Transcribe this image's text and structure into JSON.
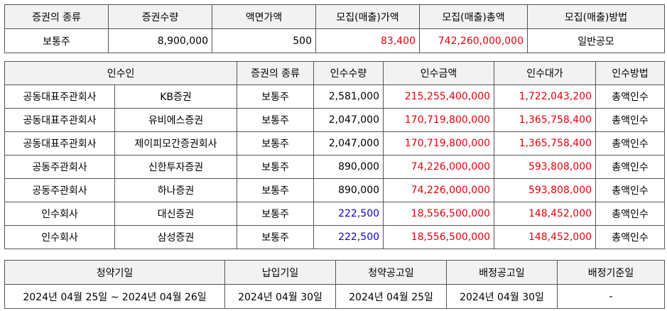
{
  "issue": {
    "headers": [
      "증권의 종류",
      "증권수량",
      "액면가액",
      "모집(매출)가액",
      "모집(매출)총액",
      "모집(매출)방법"
    ],
    "row": {
      "kind": "보통주",
      "quantity": "8,900,000",
      "face_value": "500",
      "offer_price": "83,400",
      "offer_total": "742,260,000,000",
      "method": "일반공모"
    }
  },
  "underwriters": {
    "headers": {
      "underwriter": "인수인",
      "kind": "증권의 종류",
      "quantity": "인수수량",
      "amount": "인수금액",
      "fee": "인수대가",
      "method": "인수방법"
    },
    "rows": [
      {
        "role": "공동대표주관회사",
        "name": "KB증권",
        "kind": "보통주",
        "quantity": "2,581,000",
        "amount": "215,255,400,000",
        "fee": "1,722,043,200",
        "method": "총액인수"
      },
      {
        "role": "공동대표주관회사",
        "name": "유비에스증권",
        "kind": "보통주",
        "quantity": "2,047,000",
        "amount": "170,719,800,000",
        "fee": "1,365,758,400",
        "method": "총액인수"
      },
      {
        "role": "공동대표주관회사",
        "name": "제이피모간증권회사",
        "kind": "보통주",
        "quantity": "2,047,000",
        "amount": "170,719,800,000",
        "fee": "1,365,758,400",
        "method": "총액인수"
      },
      {
        "role": "공동주관회사",
        "name": "신한투자증권",
        "kind": "보통주",
        "quantity": "890,000",
        "amount": "74,226,000,000",
        "fee": "593,808,000",
        "method": "총액인수"
      },
      {
        "role": "공동주관회사",
        "name": "하나증권",
        "kind": "보통주",
        "quantity": "890,000",
        "amount": "74,226,000,000",
        "fee": "593,808,000",
        "method": "총액인수"
      },
      {
        "role": "인수회사",
        "name": "대신증권",
        "kind": "보통주",
        "quantity": "222,500",
        "amount": "18,556,500,000",
        "fee": "148,452,000",
        "method": "총액인수"
      },
      {
        "role": "인수회사",
        "name": "삼성증권",
        "kind": "보통주",
        "quantity": "222,500",
        "amount": "18,556,500,000",
        "fee": "148,452,000",
        "method": "총액인수"
      }
    ]
  },
  "schedule": {
    "headers": [
      "청약기일",
      "납입기일",
      "청약공고일",
      "배정공고일",
      "배정기준일"
    ],
    "values": [
      "2024년 04월 25일 ~ 2024년 04월 26일",
      "2024년 04월 30일",
      "2024년 04월 25일",
      "2024년 04월 30일",
      "-"
    ]
  },
  "colors": {
    "highlight_red": "#e8000b",
    "highlight_blue": "#0a00d8",
    "header_bg": "#f2f2f2",
    "border": "#555555"
  }
}
